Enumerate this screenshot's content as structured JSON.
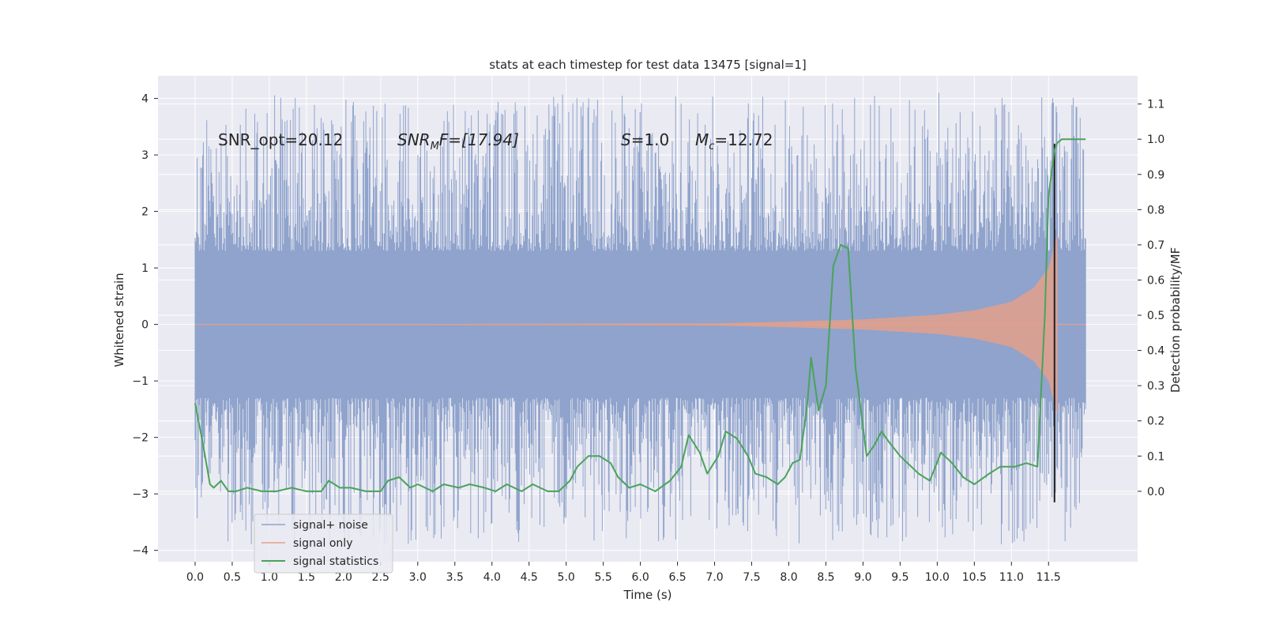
{
  "chart_data": {
    "type": "line",
    "title": "stats at each timestep for test data 13475 [signal=1]",
    "xlabel": "Time (s)",
    "ylabel": "Whitened strain",
    "ylabel_right": "Detection probability/MF",
    "xlim": [
      -0.5,
      12.7
    ],
    "ylim": [
      -4.2,
      4.4
    ],
    "ylim_right": [
      -0.2,
      1.18
    ],
    "x_ticks": [
      0.0,
      0.5,
      1.0,
      1.5,
      2.0,
      2.5,
      3.0,
      3.5,
      4.0,
      4.5,
      5.0,
      5.5,
      6.0,
      6.5,
      7.0,
      7.5,
      8.0,
      8.5,
      9.0,
      9.5,
      10.0,
      10.5,
      11.0,
      11.5
    ],
    "x_tick_labels": [
      "0.0",
      "0.5",
      "1.0",
      "1.5",
      "2.0",
      "2.5",
      "3.0",
      "3.5",
      "4.0",
      "4.5",
      "5.0",
      "5.5",
      "6.0",
      "6.5",
      "7.0",
      "7.5",
      "8.0",
      "8.5",
      "9.0",
      "9.5",
      "10.0",
      "10.5",
      "11.0",
      "11.5"
    ],
    "y_ticks": [
      -4,
      -3,
      -2,
      -1,
      0,
      1,
      2,
      3,
      4
    ],
    "y_tick_labels": [
      "−4",
      "−3",
      "−2",
      "−1",
      "0",
      "1",
      "2",
      "3",
      "4"
    ],
    "y_ticks_right": [
      0.0,
      0.1,
      0.2,
      0.3,
      0.4,
      0.5,
      0.6,
      0.7,
      0.8,
      0.9,
      1.0,
      1.1
    ],
    "y_tick_labels_right": [
      "0.0",
      "0.1",
      "0.2",
      "0.3",
      "0.4",
      "0.5",
      "0.6",
      "0.7",
      "0.8",
      "0.9",
      "1.0",
      "1.1"
    ],
    "grid": true,
    "legend_position": "bottom-left",
    "annotations": {
      "snr_opt": "SNR_opt=20.12",
      "snr_mf": "SNR",
      "snr_mf_sub": "M",
      "snr_mf_rest": "F=[17.94]",
      "s_label": "S",
      "s_value": "=1.0",
      "mc_label": "M",
      "mc_sub": "c",
      "mc_value": "=12.72"
    },
    "series": [
      {
        "name": "signal+ noise",
        "color": "#8fa3cc",
        "t_range": [
          0.0,
          12.0
        ],
        "core_amplitude": 1.3,
        "peak_amplitude_max": 4.1,
        "peak_amplitude_min": -3.9
      },
      {
        "name": "signal only",
        "color": "#e4a08a",
        "t_range": [
          0.0,
          11.62
        ],
        "chirp_envelope": {
          "x": [
            7.0,
            8.0,
            9.0,
            10.0,
            10.5,
            11.0,
            11.3,
            11.5,
            11.62
          ],
          "amplitude": [
            0.02,
            0.05,
            0.09,
            0.17,
            0.25,
            0.4,
            0.65,
            1.0,
            1.6
          ]
        }
      },
      {
        "name": "signal statistics",
        "color": "#4aa35a",
        "axis": "right",
        "x": [
          0.0,
          0.1,
          0.2,
          0.25,
          0.35,
          0.45,
          0.55,
          0.7,
          0.9,
          1.1,
          1.3,
          1.5,
          1.7,
          1.8,
          1.95,
          2.1,
          2.3,
          2.5,
          2.6,
          2.75,
          2.9,
          3.0,
          3.2,
          3.35,
          3.55,
          3.7,
          3.9,
          4.05,
          4.2,
          4.4,
          4.55,
          4.75,
          4.9,
          5.05,
          5.15,
          5.3,
          5.45,
          5.6,
          5.7,
          5.85,
          6.0,
          6.2,
          6.4,
          6.55,
          6.65,
          6.8,
          6.9,
          7.05,
          7.15,
          7.3,
          7.45,
          7.55,
          7.7,
          7.85,
          7.95,
          8.05,
          8.15,
          8.25,
          8.3,
          8.4,
          8.5,
          8.6,
          8.7,
          8.8,
          8.9,
          9.05,
          9.15,
          9.25,
          9.35,
          9.5,
          9.6,
          9.75,
          9.9,
          10.05,
          10.2,
          10.35,
          10.5,
          10.7,
          10.85,
          11.05,
          11.2,
          11.35,
          11.45,
          11.5,
          11.55,
          11.58,
          11.62,
          11.68,
          11.75,
          11.85,
          12.0
        ],
        "y": [
          0.25,
          0.14,
          0.02,
          0.01,
          0.03,
          0.0,
          0.0,
          0.01,
          0.0,
          0.0,
          0.01,
          0.0,
          0.0,
          0.03,
          0.01,
          0.01,
          0.0,
          0.0,
          0.03,
          0.04,
          0.01,
          0.02,
          0.0,
          0.02,
          0.01,
          0.02,
          0.01,
          0.0,
          0.02,
          0.0,
          0.02,
          0.0,
          0.0,
          0.03,
          0.07,
          0.1,
          0.1,
          0.08,
          0.04,
          0.01,
          0.02,
          0.0,
          0.03,
          0.07,
          0.16,
          0.11,
          0.05,
          0.1,
          0.17,
          0.15,
          0.1,
          0.05,
          0.04,
          0.02,
          0.04,
          0.08,
          0.09,
          0.25,
          0.38,
          0.23,
          0.3,
          0.64,
          0.7,
          0.69,
          0.35,
          0.1,
          0.13,
          0.17,
          0.14,
          0.1,
          0.08,
          0.05,
          0.03,
          0.11,
          0.08,
          0.04,
          0.02,
          0.05,
          0.07,
          0.07,
          0.08,
          0.07,
          0.5,
          0.84,
          0.92,
          0.97,
          0.99,
          1.0,
          1.0,
          1.0,
          1.0
        ]
      }
    ],
    "merger_marker": {
      "color": "#1f1f1f",
      "x": 11.58,
      "y_range": [
        -3.15,
        3.2
      ]
    }
  }
}
